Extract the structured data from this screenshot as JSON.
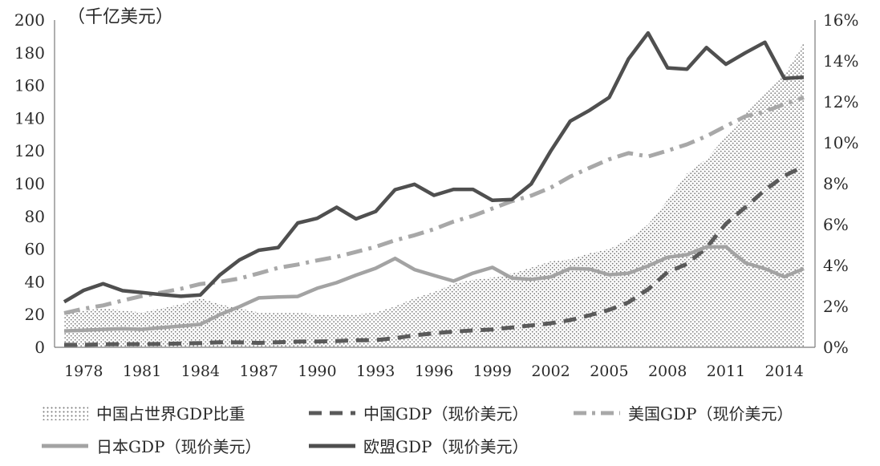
{
  "chart_data": {
    "type": "line",
    "unit_label": "（千亿美元）",
    "x": [
      1977,
      1978,
      1979,
      1980,
      1981,
      1982,
      1983,
      1984,
      1985,
      1986,
      1987,
      1988,
      1989,
      1990,
      1991,
      1992,
      1993,
      1994,
      1995,
      1996,
      1997,
      1998,
      1999,
      2000,
      2001,
      2002,
      2003,
      2004,
      2005,
      2006,
      2007,
      2008,
      2009,
      2010,
      2011,
      2012,
      2013,
      2014,
      2015
    ],
    "x_ticks": [
      "1978",
      "1981",
      "1984",
      "1987",
      "1990",
      "1993",
      "1996",
      "1999",
      "2002",
      "2005",
      "2008",
      "2011",
      "2014"
    ],
    "y_left": {
      "range": [
        0,
        200
      ],
      "ticks": [
        "0",
        "20",
        "40",
        "60",
        "80",
        "100",
        "120",
        "140",
        "160",
        "180",
        "200"
      ]
    },
    "y_right": {
      "range": [
        0,
        16
      ],
      "ticks": [
        "0%",
        "2%",
        "4%",
        "6%",
        "8%",
        "10%",
        "12%",
        "14%",
        "16%"
      ]
    },
    "grid": false,
    "series": [
      {
        "name": "中国占世界GDP比重",
        "style": "dotted-area",
        "axis": "right",
        "color": "#8a8a8a",
        "values": [
          1.7,
          1.8,
          1.9,
          1.8,
          1.7,
          1.9,
          2.1,
          2.4,
          2.1,
          1.9,
          1.7,
          1.7,
          1.7,
          1.6,
          1.6,
          1.6,
          1.7,
          2.0,
          2.4,
          2.7,
          3.1,
          3.3,
          3.4,
          3.6,
          3.9,
          4.2,
          4.3,
          4.6,
          4.8,
          5.3,
          6.0,
          7.2,
          8.5,
          9.2,
          10.3,
          11.4,
          12.4,
          13.3,
          14.9
        ]
      },
      {
        "name": "中国GDP（现价美元）",
        "style": "dash",
        "axis": "left",
        "color": "#5a5a5a",
        "values": [
          1.5,
          1.5,
          1.8,
          1.9,
          1.9,
          2.0,
          2.3,
          2.6,
          3.1,
          3.0,
          2.7,
          3.1,
          3.5,
          3.6,
          3.8,
          4.3,
          4.4,
          5.6,
          7.3,
          8.6,
          9.6,
          10.3,
          10.9,
          12.1,
          13.4,
          14.7,
          16.6,
          19.6,
          22.9,
          27.5,
          35.5,
          45.9,
          51.0,
          60.9,
          75.5,
          85.6,
          96.1,
          104.8,
          110.6
        ]
      },
      {
        "name": "美国GDP（现价美元）",
        "style": "dash-dot",
        "axis": "left",
        "color": "#a8a8a8",
        "values": [
          20.9,
          23.6,
          25.6,
          28.6,
          31.3,
          33.5,
          35.8,
          38.7,
          40.0,
          42.0,
          45.2,
          48.6,
          50.6,
          53.1,
          55.3,
          58.3,
          61.4,
          65.4,
          68.5,
          72.2,
          76.8,
          80.3,
          84.8,
          89.3,
          92.7,
          97.6,
          104.3,
          109.7,
          114.9,
          118.7,
          116.6,
          120.2,
          124.0,
          129.0,
          135.2,
          141.2,
          144.1,
          148.6,
          152.7
        ]
      },
      {
        "name": "日本GDP（现价美元）",
        "style": "solid",
        "axis": "left",
        "color": "#a3a3a3",
        "values": [
          10.0,
          10.4,
          11.0,
          11.3,
          11.0,
          12.0,
          13.0,
          14.0,
          20.0,
          24.8,
          30.2,
          30.8,
          31.1,
          36.1,
          39.5,
          44.1,
          48.3,
          54.3,
          47.5,
          43.9,
          40.5,
          45.3,
          48.8,
          42.3,
          41.5,
          43.0,
          48.2,
          47.8,
          44.3,
          45.3,
          49.7,
          55.0,
          56.6,
          61.3,
          61.4,
          51.5,
          48.1,
          43.1,
          48.1
        ]
      },
      {
        "name": "欧盟GDP（现价美元）",
        "style": "solid",
        "axis": "left",
        "color": "#4f4f4f",
        "values": [
          27.8,
          34.8,
          38.8,
          34.6,
          33.5,
          32.2,
          31.2,
          32.0,
          44.2,
          53.4,
          59.3,
          61.0,
          76.0,
          78.8,
          85.6,
          78.5,
          83.0,
          96.3,
          99.6,
          92.9,
          96.5,
          96.5,
          89.8,
          90.3,
          99.9,
          120.0,
          138.2,
          144.9,
          152.7,
          176.3,
          192.1,
          170.8,
          170.0,
          183.2,
          173.0,
          180.0,
          186.4,
          164.3,
          165.0
        ]
      }
    ]
  }
}
